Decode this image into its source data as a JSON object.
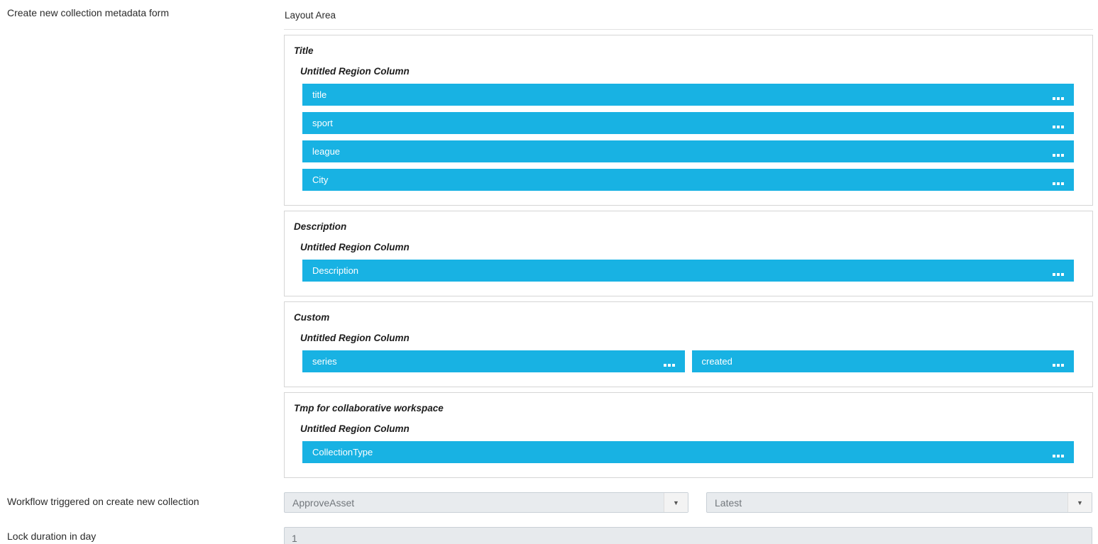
{
  "header": {
    "form_label": "Create new collection metadata form",
    "layout_area_label": "Layout Area"
  },
  "layout": {
    "sections": [
      {
        "title": "Title",
        "region_label": "Untitled Region Column",
        "fields": [
          {
            "label": "title"
          },
          {
            "label": "sport"
          },
          {
            "label": "league"
          },
          {
            "label": "City"
          }
        ]
      },
      {
        "title": "Description",
        "region_label": "Untitled Region Column",
        "fields": [
          {
            "label": "Description"
          }
        ]
      },
      {
        "title": "Custom",
        "region_label": "Untitled Region Column",
        "fields": [
          {
            "label": "series"
          },
          {
            "label": "created"
          }
        ]
      },
      {
        "title": "Tmp for collaborative workspace",
        "region_label": "Untitled Region Column",
        "fields": [
          {
            "label": "CollectionType"
          }
        ]
      }
    ]
  },
  "workflow": {
    "label": "Workflow triggered on create new collection",
    "workflow_selected": "ApproveAsset",
    "version_selected": "Latest",
    "dropdown_arrow_icon": "▼"
  },
  "lock": {
    "label": "Lock duration in day",
    "value": "1"
  },
  "colors": {
    "field_chip_blue": "#18b2e3",
    "select_bg": "#e8ebee",
    "input_bg": "#e7eaed",
    "section_border": "#d5d5d5"
  }
}
